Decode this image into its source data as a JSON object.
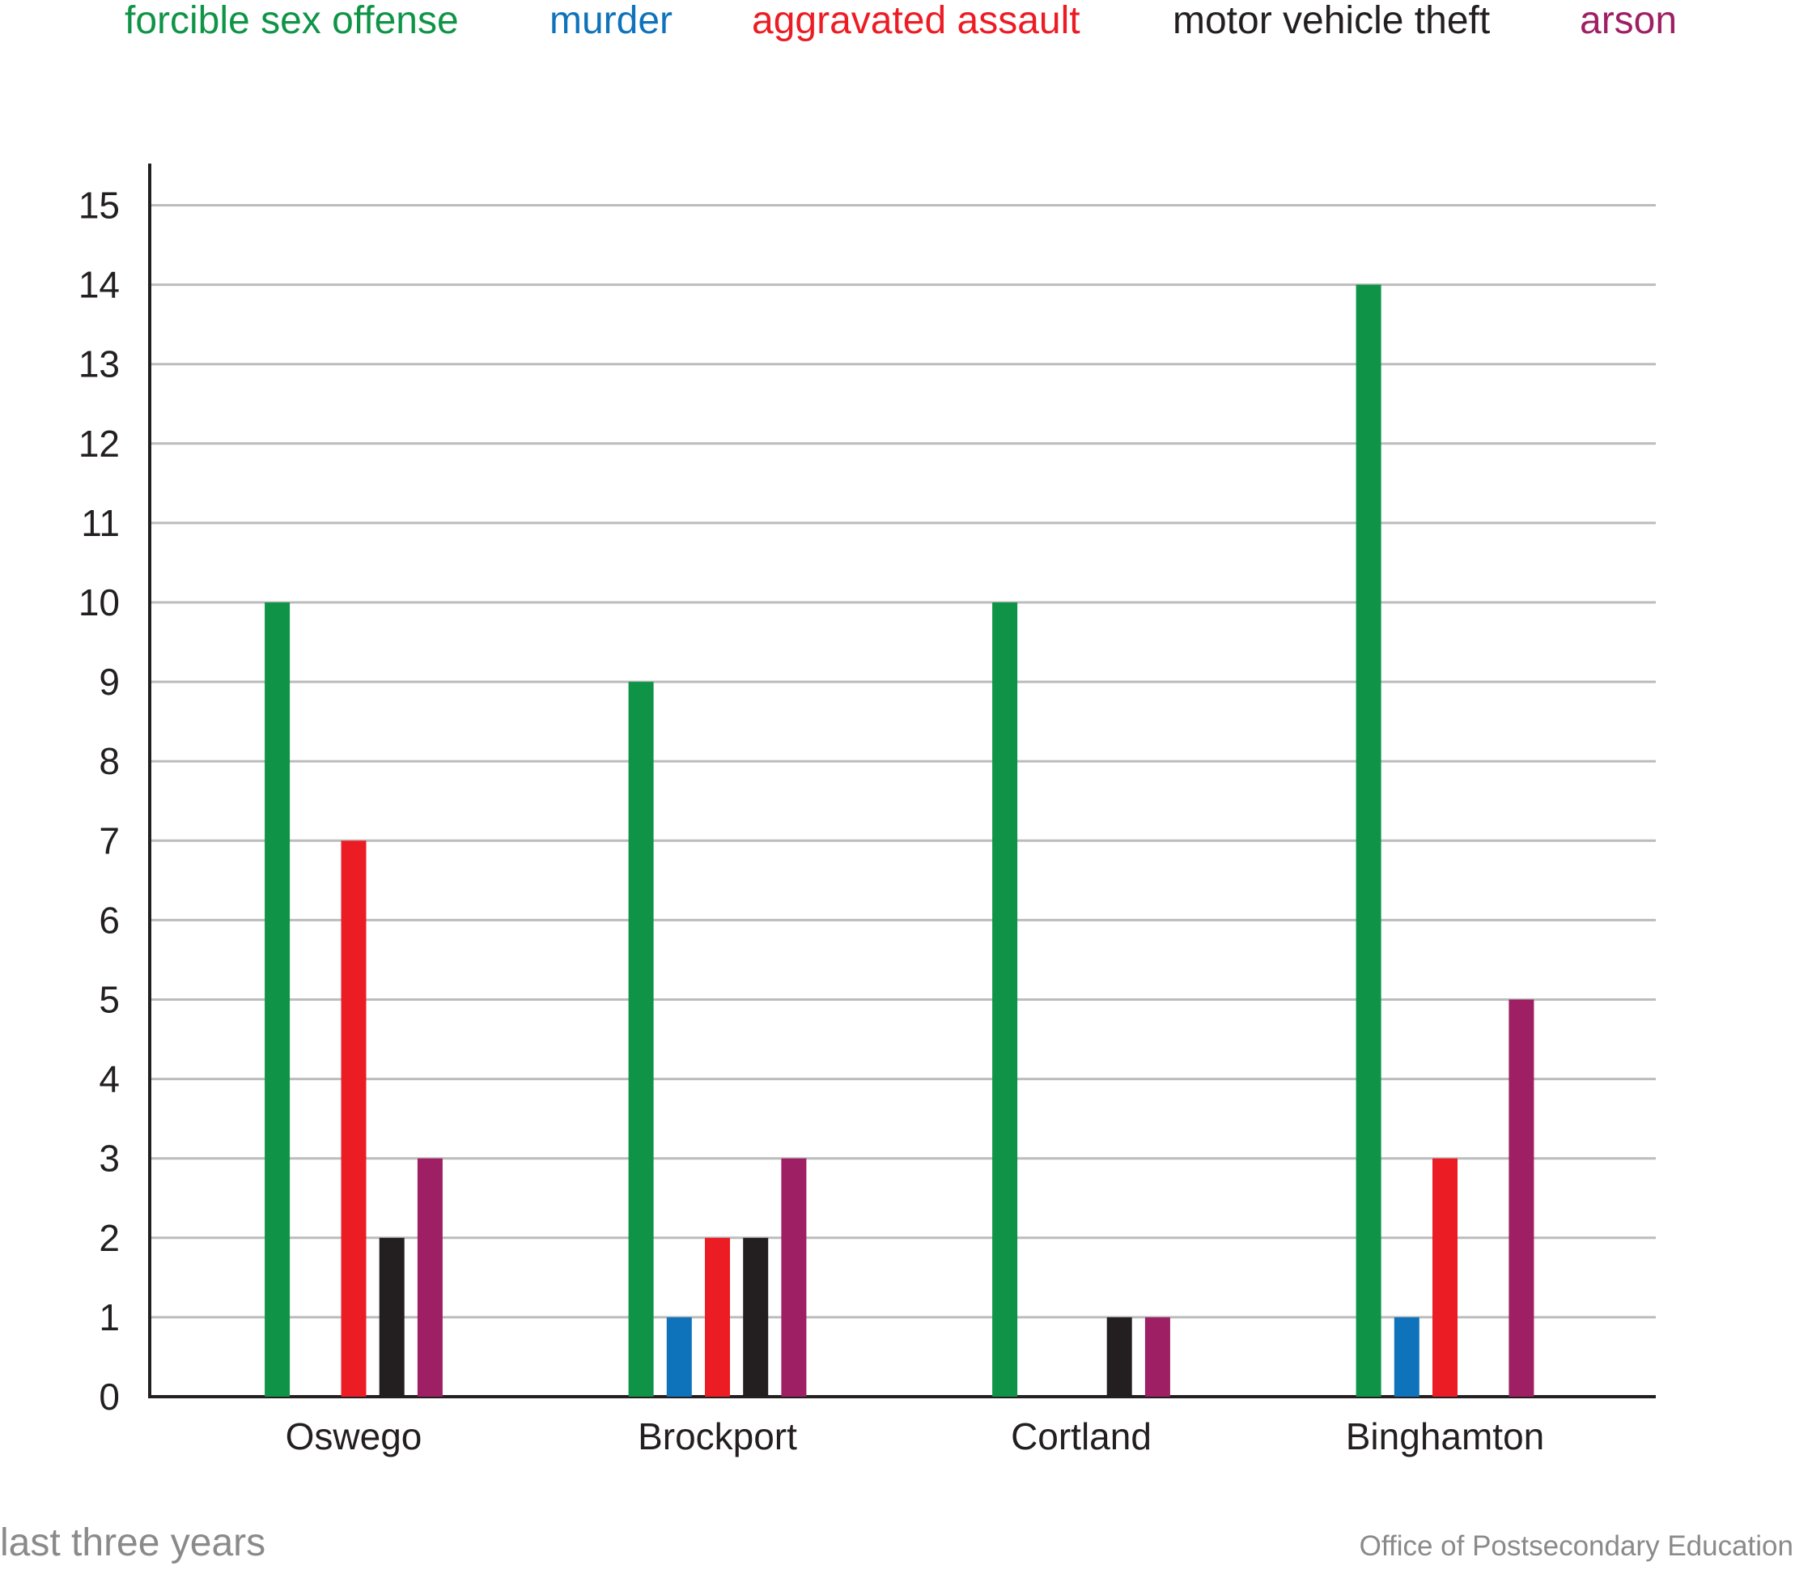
{
  "chart_data": {
    "type": "bar",
    "categories": [
      "Oswego",
      "Brockport",
      "Cortland",
      "Binghamton"
    ],
    "series": [
      {
        "name": "forcible sex offense",
        "color": "#0f9447",
        "values": [
          10,
          9,
          10,
          14
        ]
      },
      {
        "name": "murder",
        "color": "#0e73bb",
        "values": [
          0,
          1,
          0,
          1
        ]
      },
      {
        "name": "aggravated assault",
        "color": "#ec1c24",
        "values": [
          7,
          2,
          0,
          3
        ]
      },
      {
        "name": "motor vehicle theft",
        "color": "#231f20",
        "values": [
          2,
          2,
          1,
          0
        ]
      },
      {
        "name": "arson",
        "color": "#9e1f63",
        "values": [
          3,
          3,
          1,
          5
        ]
      }
    ],
    "ylim": [
      0,
      15
    ],
    "yticks": [
      0,
      1,
      2,
      3,
      4,
      5,
      6,
      7,
      8,
      9,
      10,
      11,
      12,
      13,
      14,
      15
    ],
    "grid": true,
    "legend_placement": "top"
  },
  "footer": {
    "left_text": "last three years",
    "right_text": "Office of Postsecondary Education"
  }
}
